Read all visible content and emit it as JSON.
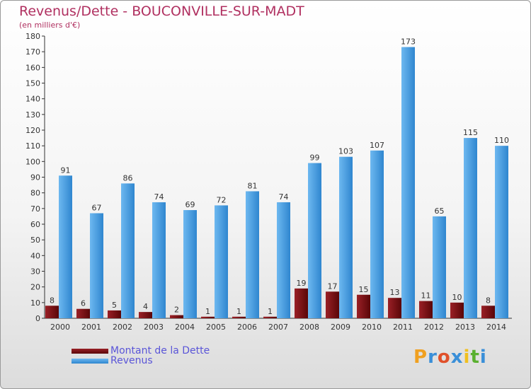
{
  "title": "Revenus/Dette - BOUCONVILLE-SUR-MADT",
  "subtitle": "(en milliers d'€)",
  "logo": {
    "text": "Proxiti"
  },
  "colors": {
    "dette": "#7a0e12",
    "revenus": "#3f9be0",
    "title": "#b03060",
    "legend_text": "#5a55d8"
  },
  "chart_data": {
    "type": "bar",
    "title": "Revenus/Dette - BOUCONVILLE-SUR-MADT",
    "ylabel": "(en milliers d'€)",
    "ylim": [
      0,
      180
    ],
    "yticks": [
      0,
      10,
      20,
      30,
      40,
      50,
      60,
      70,
      80,
      90,
      100,
      110,
      120,
      130,
      140,
      150,
      160,
      170,
      180
    ],
    "categories": [
      "2000",
      "2001",
      "2002",
      "2003",
      "2004",
      "2005",
      "2006",
      "2007",
      "2008",
      "2009",
      "2010",
      "2011",
      "2012",
      "2013",
      "2014"
    ],
    "series": [
      {
        "name": "Montant de la Dette",
        "values": [
          8,
          6,
          5,
          4,
          2,
          1,
          1,
          1,
          19,
          17,
          15,
          13,
          11,
          10,
          8
        ]
      },
      {
        "name": "Revenus",
        "values": [
          91,
          67,
          86,
          74,
          69,
          72,
          81,
          74,
          99,
          103,
          107,
          173,
          65,
          115,
          110
        ]
      }
    ],
    "grid": false,
    "legend_position": "bottom-left"
  }
}
